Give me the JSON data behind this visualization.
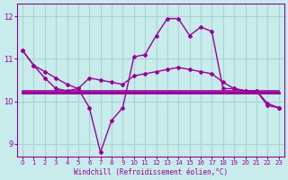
{
  "background_color": "#c8ecec",
  "grid_color": "#aad4d4",
  "line_color": "#990099",
  "xlabel": "Windchill (Refroidissement éolien,°C)",
  "xlabel_color": "#990099",
  "ylim": [
    8.7,
    12.3
  ],
  "xlim": [
    -0.5,
    23.5
  ],
  "yticks": [
    9,
    10,
    11,
    12
  ],
  "xticks": [
    0,
    1,
    2,
    3,
    4,
    5,
    6,
    7,
    8,
    9,
    10,
    11,
    12,
    13,
    14,
    15,
    16,
    17,
    18,
    19,
    20,
    21,
    22,
    23
  ],
  "line_flat1": [
    10.25,
    10.25,
    10.25,
    10.25,
    10.25,
    10.25,
    10.25,
    10.25,
    10.25,
    10.25,
    10.25,
    10.25,
    10.25,
    10.25,
    10.25,
    10.25,
    10.25,
    10.25,
    10.25,
    10.25,
    10.25,
    10.25,
    10.25,
    10.25
  ],
  "line_flat2": [
    10.2,
    10.2,
    10.2,
    10.2,
    10.2,
    10.2,
    10.2,
    10.2,
    10.2,
    10.2,
    10.2,
    10.2,
    10.2,
    10.2,
    10.2,
    10.2,
    10.2,
    10.2,
    10.2,
    10.2,
    10.2,
    10.2,
    10.2,
    10.2
  ],
  "line_flat3": [
    10.22,
    10.22,
    10.22,
    10.22,
    10.22,
    10.22,
    10.22,
    10.22,
    10.22,
    10.22,
    10.22,
    10.22,
    10.22,
    10.22,
    10.22,
    10.22,
    10.22,
    10.22,
    10.22,
    10.22,
    10.22,
    10.22,
    10.22,
    10.22
  ],
  "line_smooth_y": [
    11.2,
    10.85,
    10.7,
    10.55,
    10.4,
    10.3,
    10.55,
    10.5,
    10.45,
    10.4,
    10.6,
    10.65,
    10.7,
    10.75,
    10.8,
    10.75,
    10.7,
    10.65,
    10.45,
    10.3,
    10.25,
    10.25,
    9.95,
    9.85
  ],
  "line_jagged_y": [
    11.2,
    10.85,
    10.55,
    10.3,
    10.25,
    10.3,
    9.85,
    8.8,
    9.55,
    9.85,
    11.05,
    11.1,
    11.55,
    11.95,
    11.95,
    11.55,
    11.75,
    11.65,
    10.3,
    10.3,
    10.25,
    10.25,
    9.9,
    9.85
  ],
  "x": [
    0,
    1,
    2,
    3,
    4,
    5,
    6,
    7,
    8,
    9,
    10,
    11,
    12,
    13,
    14,
    15,
    16,
    17,
    18,
    19,
    20,
    21,
    22,
    23
  ]
}
